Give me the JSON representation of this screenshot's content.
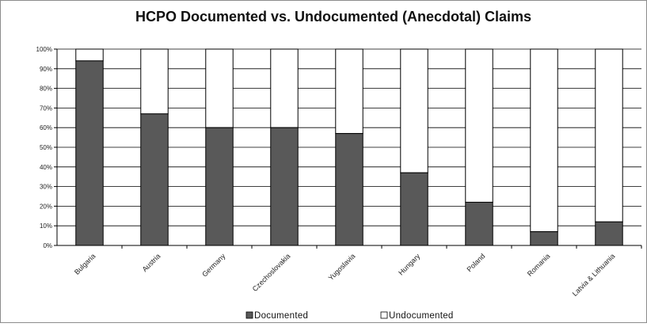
{
  "chart_data": {
    "type": "bar",
    "stacked": true,
    "percent_stacked": true,
    "title": "HCPO Documented vs. Undocumented (Anecdotal) Claims",
    "xlabel": "",
    "ylabel": "",
    "categories": [
      "Bulgaria",
      "Austria",
      "Germany",
      "Czechoslovakia",
      "Yugoslavia",
      "Hungary",
      "Poland",
      "Romania",
      "Latvia & Lithuania"
    ],
    "series": [
      {
        "name": "Documented",
        "values": [
          94,
          67,
          60,
          60,
          57,
          37,
          22,
          7,
          12
        ]
      },
      {
        "name": "Undocumented",
        "values": [
          6,
          33,
          40,
          40,
          43,
          63,
          78,
          93,
          88
        ]
      }
    ],
    "ylim": [
      0,
      100
    ],
    "yticks": [
      "0%",
      "10%",
      "20%",
      "30%",
      "40%",
      "50%",
      "60%",
      "70%",
      "80%",
      "90%",
      "100%"
    ],
    "grid": true,
    "legend_position": "bottom",
    "colors": {
      "Documented": "#595959",
      "Undocumented": "#ffffff",
      "edge": "#000000"
    }
  }
}
